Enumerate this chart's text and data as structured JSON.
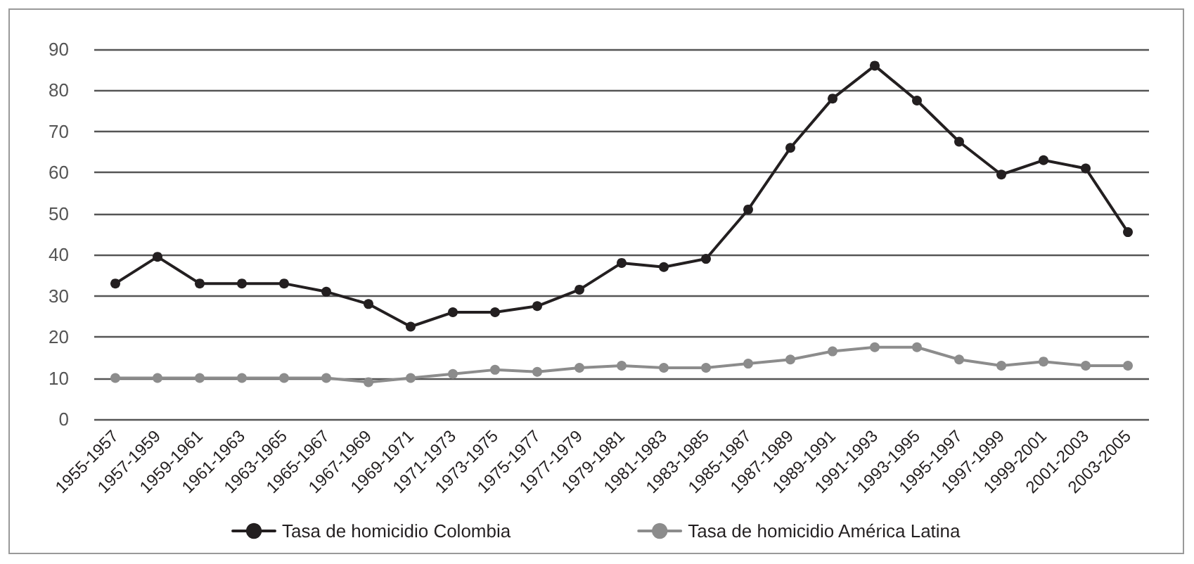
{
  "chart_data": {
    "type": "line",
    "categories": [
      "1955-1957",
      "1957-1959",
      "1959-1961",
      "1961-1963",
      "1963-1965",
      "1965-1967",
      "1967-1969",
      "1969-1971",
      "1971-1973",
      "1973-1975",
      "1975-1977",
      "1977-1979",
      "1979-1981",
      "1981-1983",
      "1983-1985",
      "1985-1987",
      "1987-1989",
      "1989-1991",
      "1991-1993",
      "1993-1995",
      "1995-1997",
      "1997-1999",
      "1999-2001",
      "2001-2003",
      "2003-2005"
    ],
    "series": [
      {
        "name": "Tasa de homicidio Colombia",
        "color": "#231f20",
        "values": [
          33,
          39.5,
          33,
          33,
          33,
          31,
          28,
          22.5,
          26,
          26,
          27.5,
          31.5,
          38,
          37,
          39,
          51,
          66,
          78,
          86,
          77.5,
          67.5,
          59.5,
          63,
          61,
          45.5
        ]
      },
      {
        "name": "Tasa de homicidio América Latina",
        "color": "#8c8c8c",
        "values": [
          10,
          10,
          10,
          10,
          10,
          10,
          9,
          10,
          11,
          12,
          11.5,
          12.5,
          13,
          12.5,
          12.5,
          13.5,
          14.5,
          16.5,
          17.5,
          17.5,
          14.5,
          13,
          14,
          13,
          13
        ]
      }
    ],
    "ylim": [
      0,
      90
    ],
    "yticks": [
      0,
      10,
      20,
      30,
      40,
      50,
      60,
      70,
      80,
      90
    ],
    "grid": "y",
    "legend": "bottom",
    "marker": "circle",
    "line_style": "solid"
  }
}
